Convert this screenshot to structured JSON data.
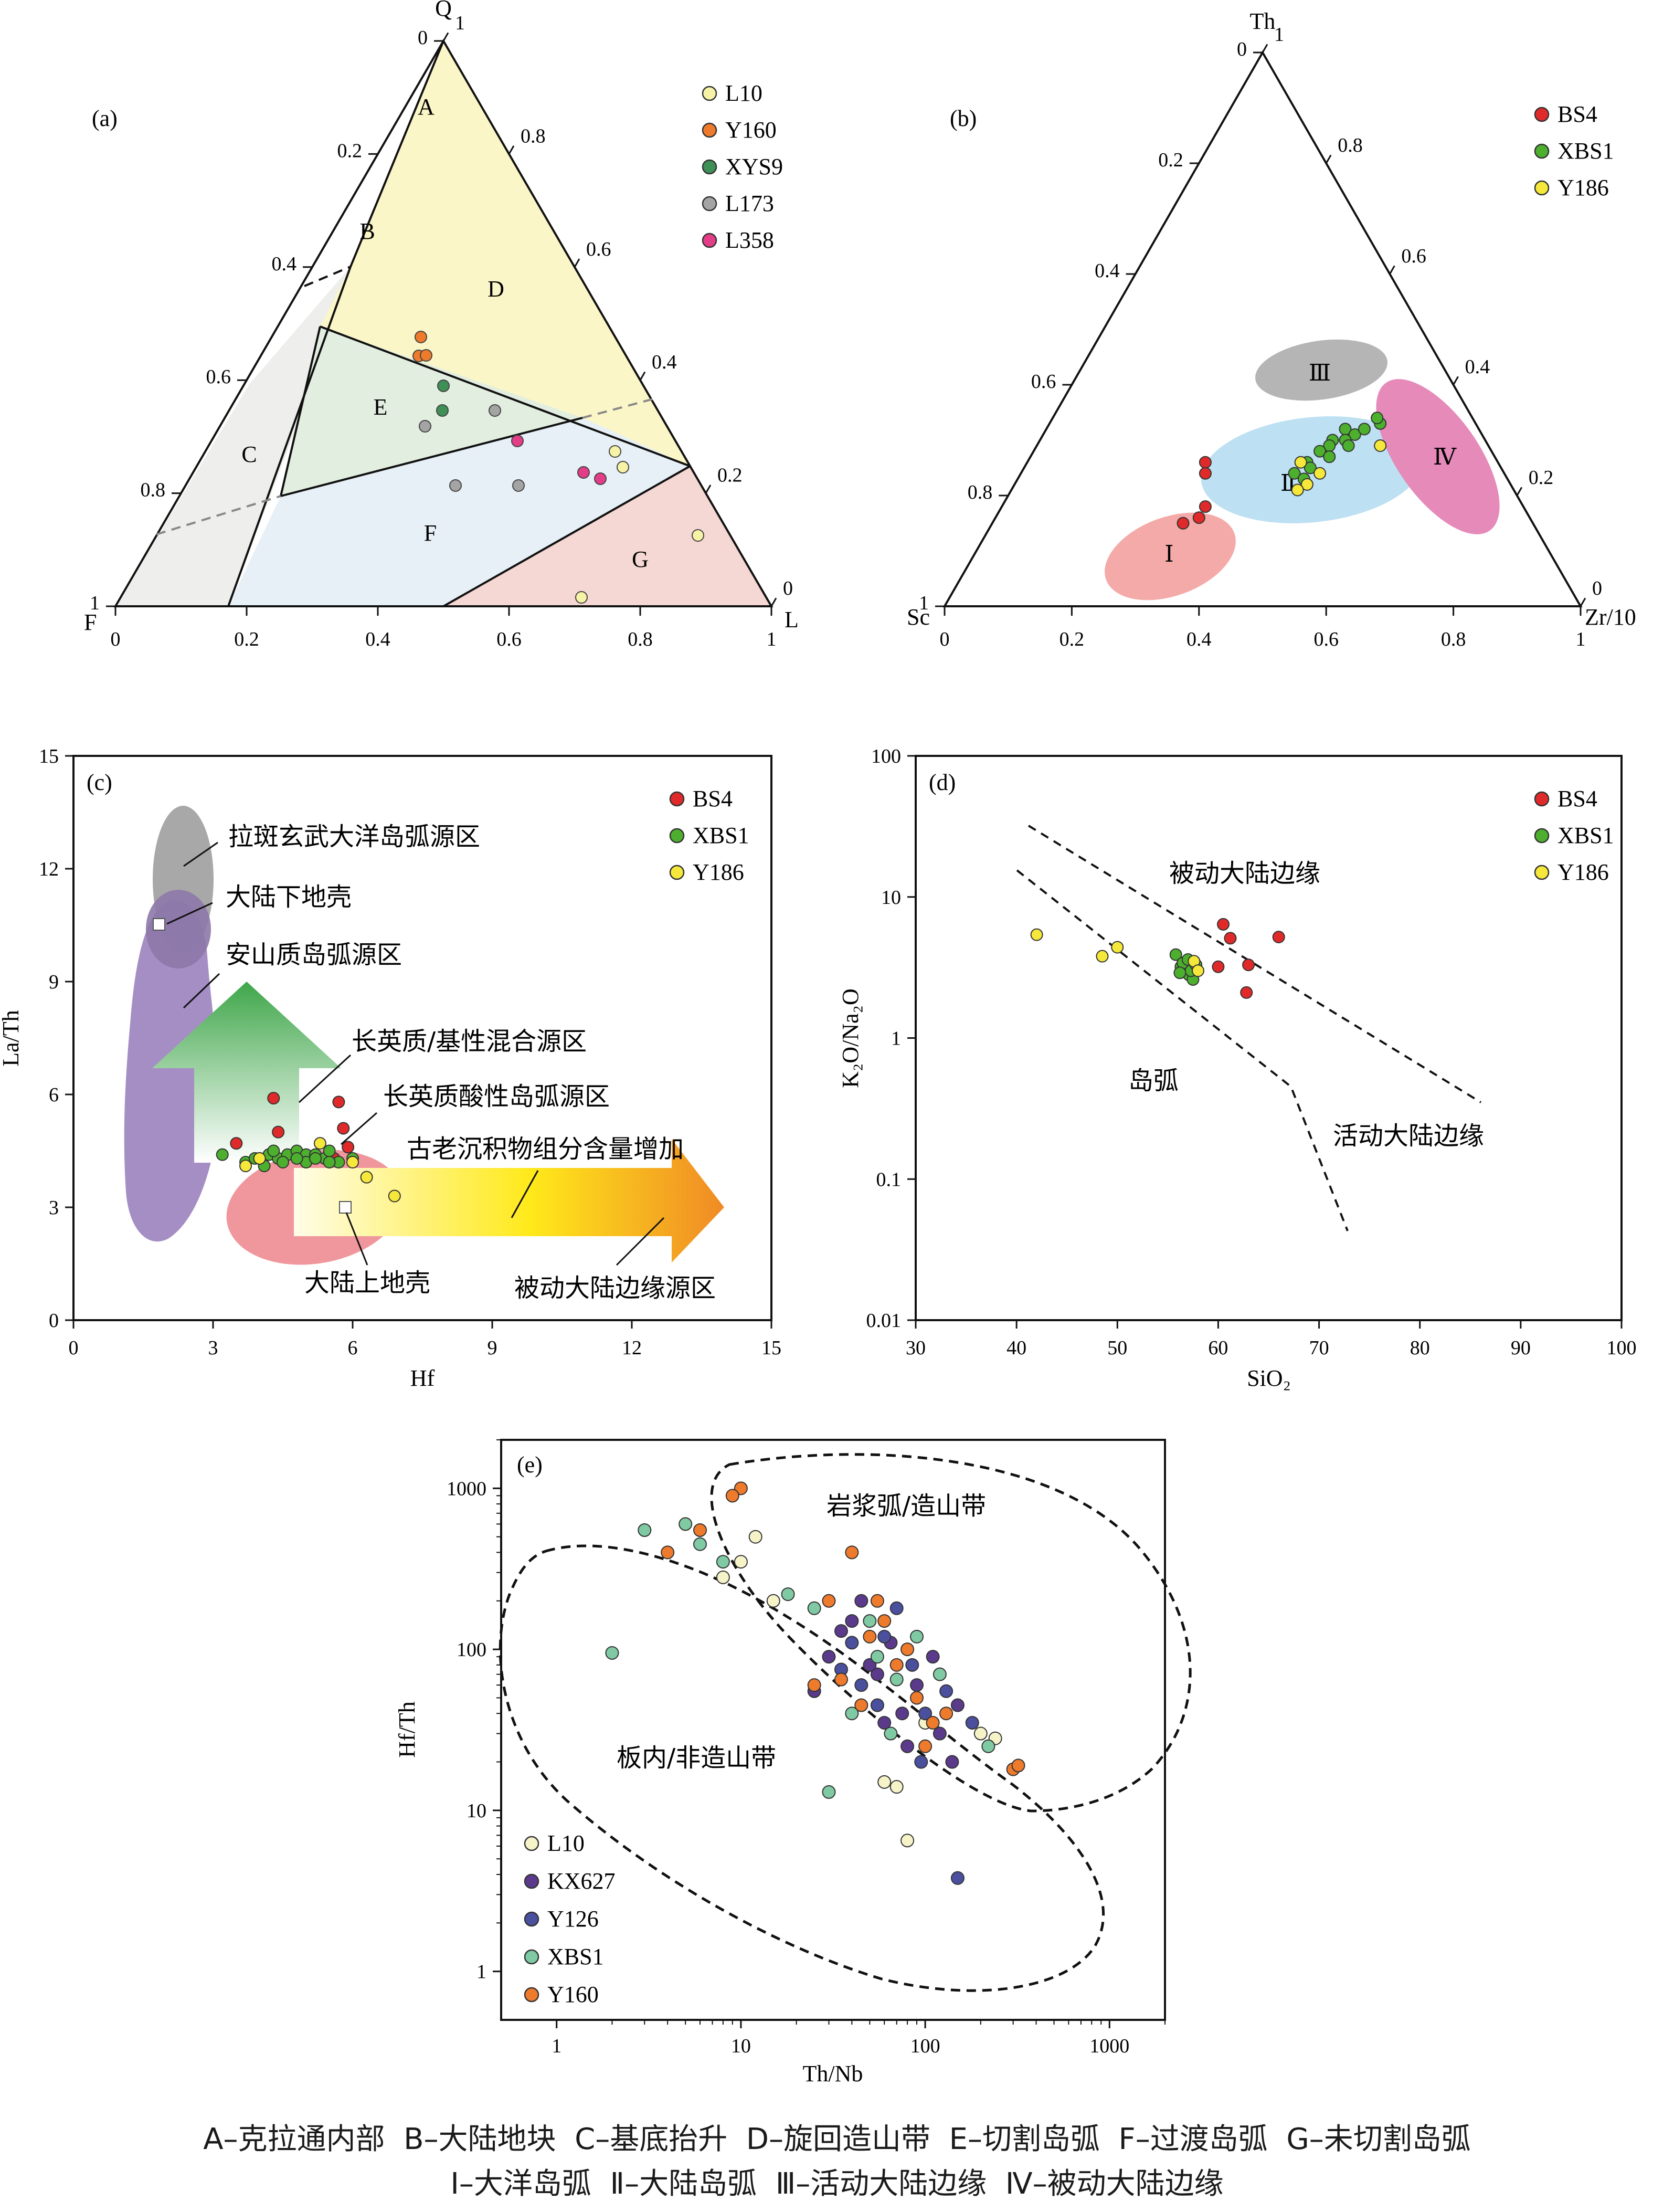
{
  "panels": {
    "a": {
      "label": "(a)",
      "vertices": {
        "top": "Q",
        "left": "F",
        "right": "L"
      },
      "legend": [
        {
          "name": "L10",
          "color": "#f7f3a6"
        },
        {
          "name": "Y160",
          "color": "#ee7a2c"
        },
        {
          "name": "XYS9",
          "color": "#3f8f57"
        },
        {
          "name": "L173",
          "color": "#a4a4a4"
        },
        {
          "name": "L358",
          "color": "#e23d86"
        }
      ],
      "regions": {
        "A": "A",
        "B": "B",
        "C": "C",
        "D": "D",
        "E": "E",
        "F": "F",
        "G": "G"
      },
      "left_ticks": [
        "0",
        "0.2",
        "0.4",
        "0.6",
        "0.8",
        "1"
      ],
      "right_ticks": [
        "1",
        "0.8",
        "0.6",
        "0.4",
        "0.2",
        "0"
      ],
      "bottom_ticks": [
        "0",
        "0.2",
        "0.4",
        "0.6",
        "0.8",
        "1"
      ]
    },
    "b": {
      "label": "(b)",
      "vertices": {
        "top": "Th",
        "left": "Sc",
        "right": "Zr/10"
      },
      "legend": [
        {
          "name": "BS4",
          "color": "#e02a2a"
        },
        {
          "name": "XBS1",
          "color": "#4caf2e"
        },
        {
          "name": "Y186",
          "color": "#f5e83a"
        }
      ],
      "regions": {
        "I": "Ⅰ",
        "II": "Ⅱ",
        "III": "Ⅲ",
        "IV": "Ⅳ"
      },
      "left_ticks": [
        "0",
        "0.2",
        "0.4",
        "0.6",
        "0.8",
        "1"
      ],
      "right_ticks": [
        "1",
        "0.8",
        "0.6",
        "0.4",
        "0.2",
        "0"
      ],
      "bottom_ticks": [
        "0",
        "0.2",
        "0.4",
        "0.6",
        "0.8",
        "1"
      ]
    },
    "c": {
      "label": "(c)",
      "legend": [
        {
          "name": "BS4",
          "color": "#e02a2a"
        },
        {
          "name": "XBS1",
          "color": "#4caf2e"
        },
        {
          "name": "Y186",
          "color": "#f5e83a"
        }
      ],
      "annotations": {
        "oceanic": "拉斑玄武大洋岛弧源区",
        "lower_crust": "大陆下地壳",
        "andesitic": "安山质岛弧源区",
        "mixed": "长英质/基性混合源区",
        "felsic": "长英质酸性岛弧源区",
        "old_sed": "古老沉积物组分含量增加",
        "upper_crust": "大陆上地壳",
        "passive": "被动大陆边缘源区"
      }
    },
    "d": {
      "label": "(d)",
      "legend": [
        {
          "name": "BS4",
          "color": "#e02a2a"
        },
        {
          "name": "XBS1",
          "color": "#4caf2e"
        },
        {
          "name": "Y186",
          "color": "#f5e83a"
        }
      ],
      "annotations": {
        "passive": "被动大陆边缘",
        "arc": "岛弧",
        "active": "活动大陆边缘"
      }
    },
    "e": {
      "label": "(e)",
      "legend": [
        {
          "name": "L10",
          "color": "#f7f3c9"
        },
        {
          "name": "KX627",
          "color": "#5b3a8c"
        },
        {
          "name": "Y126",
          "color": "#4a4f9e"
        },
        {
          "name": "XBS1",
          "color": "#7fc9a3"
        },
        {
          "name": "Y160",
          "color": "#ee7a2c"
        }
      ],
      "annotations": {
        "arc": "岩浆弧/造山带",
        "intraplate": "板内/非造山带"
      }
    }
  },
  "caption": {
    "line1": "A–克拉通内部  B–大陆地块  C–基底抬升  D–旋回造山带  E–切割岛弧  F–过渡岛弧  G–未切割岛弧",
    "line2": "Ⅰ–大洋岛弧  Ⅱ–大陆岛弧  Ⅲ–活动大陆边缘  Ⅳ–被动大陆边缘"
  },
  "chart_data": [
    {
      "type": "scatter",
      "panel": "a",
      "series": [
        {
          "name": "L10",
          "points": [
            [
              0.07,
              0.68
            ],
            [
              0.22,
              0.55
            ],
            [
              0.24,
              0.57
            ],
            [
              0.08,
              0.65
            ]
          ]
        },
        {
          "name": "Y160",
          "points": [
            [
              0.61,
              0.27
            ],
            [
              0.57,
              0.28
            ],
            [
              0.56,
              0.31
            ]
          ]
        },
        {
          "name": "XYS9",
          "points": [
            [
              0.54,
              0.32
            ],
            [
              0.52,
              0.37
            ]
          ]
        },
        {
          "name": "L173",
          "points": [
            [
              0.62,
              0.33
            ],
            [
              0.51,
              0.42
            ],
            [
              0.49,
              0.6
            ],
            [
              0.38,
              0.58
            ]
          ]
        },
        {
          "name": "L358",
          "points": [
            [
              0.4,
              0.52
            ],
            [
              0.28,
              0.64
            ],
            [
              0.26,
              0.69
            ]
          ]
        }
      ]
    },
    {
      "type": "scatter",
      "panel": "b",
      "series": [
        {
          "name": "BS4",
          "points": [
            [
              0.26,
              0.28,
              0.46
            ],
            [
              0.24,
              0.29,
              0.47
            ],
            [
              0.18,
              0.32,
              0.5
            ],
            [
              0.16,
              0.32,
              0.52
            ],
            [
              0.15,
              0.3,
              0.55
            ]
          ]
        },
        {
          "name": "XBS1",
          "points": [
            [
              0.33,
              0.52,
              0.15
            ],
            [
              0.34,
              0.51,
              0.15
            ],
            [
              0.32,
              0.47,
              0.21
            ],
            [
              0.3,
              0.46,
              0.24
            ],
            [
              0.29,
              0.46,
              0.25
            ],
            [
              0.28,
              0.45,
              0.27
            ],
            [
              0.26,
              0.44,
              0.3
            ],
            [
              0.24,
              0.43,
              0.33
            ],
            [
              0.31,
              0.49,
              0.2
            ],
            [
              0.3,
              0.48,
              0.22
            ],
            [
              0.27,
              0.47,
              0.26
            ],
            [
              0.25,
              0.45,
              0.3
            ],
            [
              0.32,
              0.5,
              0.18
            ],
            [
              0.29,
              0.49,
              0.22
            ],
            [
              0.23,
              0.45,
              0.32
            ]
          ]
        },
        {
          "name": "Y186",
          "points": [
            [
              0.29,
              0.54,
              0.17
            ],
            [
              0.24,
              0.47,
              0.29
            ],
            [
              0.22,
              0.46,
              0.32
            ],
            [
              0.21,
              0.45,
              0.34
            ],
            [
              0.26,
              0.43,
              0.31
            ]
          ]
        }
      ]
    },
    {
      "type": "scatter",
      "panel": "c",
      "xlabel": "Hf",
      "ylabel": "La/Th",
      "xlim": [
        0,
        15
      ],
      "ylim": [
        0,
        15
      ],
      "xticks": [
        0,
        3,
        6,
        9,
        12,
        15
      ],
      "yticks": [
        0,
        3,
        6,
        9,
        12,
        15
      ],
      "series": [
        {
          "name": "BS4",
          "points": [
            [
              4.3,
              5.9
            ],
            [
              5.7,
              5.8
            ],
            [
              4.4,
              5.0
            ],
            [
              5.8,
              5.1
            ],
            [
              3.5,
              4.7
            ],
            [
              5.9,
              4.6
            ],
            [
              5.6,
              4.3
            ]
          ]
        },
        {
          "name": "XBS1",
          "points": [
            [
              3.2,
              4.4
            ],
            [
              3.7,
              4.2
            ],
            [
              3.9,
              4.3
            ],
            [
              4.0,
              4.3
            ],
            [
              4.2,
              4.4
            ],
            [
              4.4,
              4.3
            ],
            [
              4.6,
              4.4
            ],
            [
              4.8,
              4.5
            ],
            [
              5.0,
              4.4
            ],
            [
              5.2,
              4.4
            ],
            [
              5.4,
              4.3
            ],
            [
              5.5,
              4.5
            ],
            [
              4.1,
              4.1
            ],
            [
              4.5,
              4.2
            ],
            [
              5.0,
              4.2
            ],
            [
              5.7,
              4.2
            ],
            [
              6.0,
              4.3
            ],
            [
              5.5,
              4.2
            ],
            [
              4.8,
              4.3
            ],
            [
              4.3,
              4.5
            ],
            [
              5.2,
              4.3
            ]
          ]
        },
        {
          "name": "Y186",
          "points": [
            [
              3.7,
              4.1
            ],
            [
              5.3,
              4.7
            ],
            [
              6.0,
              4.2
            ],
            [
              6.3,
              3.8
            ],
            [
              6.9,
              3.3
            ],
            [
              4.0,
              4.3
            ]
          ]
        }
      ]
    },
    {
      "type": "scatter",
      "panel": "d",
      "xlabel": "SiO₂",
      "ylabel": "K₂O/Na₂O",
      "xlim": [
        30,
        100
      ],
      "ylim": [
        0.01,
        100
      ],
      "yscale": "log",
      "xticks": [
        30,
        40,
        50,
        60,
        70,
        80,
        90,
        100
      ],
      "yticks": [
        "0.01",
        "0.1",
        "1",
        "10",
        "100"
      ],
      "series": [
        {
          "name": "BS4",
          "points": [
            [
              60.5,
              6.4
            ],
            [
              61.2,
              5.1
            ],
            [
              66.0,
              5.2
            ],
            [
              63.0,
              3.3
            ],
            [
              60.0,
              3.2
            ],
            [
              62.8,
              2.1
            ]
          ]
        },
        {
          "name": "XBS1",
          "points": [
            [
              55.8,
              3.9
            ],
            [
              56.3,
              3.2
            ],
            [
              56.9,
              3.0
            ],
            [
              57.1,
              2.8
            ],
            [
              57.5,
              2.6
            ],
            [
              56.5,
              3.4
            ],
            [
              57.3,
              3.0
            ],
            [
              57.8,
              3.3
            ],
            [
              56.2,
              2.9
            ],
            [
              57.0,
              3.6
            ]
          ]
        },
        {
          "name": "Y186",
          "points": [
            [
              42.0,
              5.4
            ],
            [
              50.0,
              4.4
            ],
            [
              48.5,
              3.8
            ],
            [
              57.6,
              3.5
            ],
            [
              58.0,
              3.0
            ]
          ]
        }
      ]
    },
    {
      "type": "scatter",
      "panel": "e",
      "xlabel": "Th/Nb",
      "ylabel": "Hf/Th",
      "xscale": "log",
      "yscale": "log",
      "xlim": [
        0.5,
        2000
      ],
      "ylim": [
        0.5,
        2000
      ],
      "xticks": [
        "1",
        "10",
        "100",
        "1000"
      ],
      "yticks": [
        "1",
        "10",
        "100",
        "1000"
      ],
      "series": [
        {
          "name": "L10",
          "points": [
            [
              12,
              500
            ],
            [
              8,
              280
            ],
            [
              10,
              350
            ],
            [
              60,
              15
            ],
            [
              80,
              6.5
            ],
            [
              200,
              30
            ],
            [
              240,
              28
            ],
            [
              100,
              35
            ],
            [
              70,
              14
            ],
            [
              15,
              200
            ]
          ]
        },
        {
          "name": "KX627",
          "points": [
            [
              40,
              150
            ],
            [
              55,
              70
            ],
            [
              75,
              40
            ],
            [
              30,
              90
            ],
            [
              90,
              60
            ],
            [
              120,
              30
            ],
            [
              45,
              200
            ],
            [
              65,
              110
            ],
            [
              150,
              45
            ],
            [
              25,
              55
            ],
            [
              80,
              25
            ],
            [
              110,
              90
            ],
            [
              35,
              130
            ],
            [
              60,
              35
            ],
            [
              140,
              20
            ],
            [
              50,
              80
            ]
          ]
        },
        {
          "name": "Y126",
          "points": [
            [
              150,
              3.8
            ],
            [
              60,
              120
            ],
            [
              85,
              80
            ],
            [
              45,
              60
            ],
            [
              100,
              40
            ],
            [
              130,
              55
            ],
            [
              70,
              180
            ],
            [
              55,
              45
            ],
            [
              35,
              75
            ],
            [
              180,
              35
            ],
            [
              95,
              20
            ],
            [
              40,
              110
            ]
          ]
        },
        {
          "name": "XBS1",
          "points": [
            [
              2,
              95
            ],
            [
              3,
              550
            ],
            [
              6,
              450
            ],
            [
              5,
              600
            ],
            [
              8,
              350
            ],
            [
              18,
              220
            ],
            [
              30,
              13
            ],
            [
              25,
              180
            ],
            [
              55,
              90
            ],
            [
              40,
              40
            ],
            [
              70,
              65
            ],
            [
              90,
              120
            ],
            [
              120,
              70
            ],
            [
              50,
              150
            ],
            [
              65,
              30
            ],
            [
              220,
              25
            ]
          ]
        },
        {
          "name": "Y160",
          "points": [
            [
              10,
              1000
            ],
            [
              9,
              900
            ],
            [
              4,
              400
            ],
            [
              6,
              550
            ],
            [
              40,
              400
            ],
            [
              30,
              200
            ],
            [
              50,
              120
            ],
            [
              70,
              80
            ],
            [
              90,
              50
            ],
            [
              110,
              35
            ],
            [
              60,
              150
            ],
            [
              35,
              65
            ],
            [
              80,
              100
            ],
            [
              130,
              40
            ],
            [
              300,
              18
            ],
            [
              320,
              19
            ],
            [
              25,
              60
            ],
            [
              45,
              45
            ],
            [
              100,
              25
            ],
            [
              55,
              200
            ]
          ]
        }
      ]
    }
  ]
}
